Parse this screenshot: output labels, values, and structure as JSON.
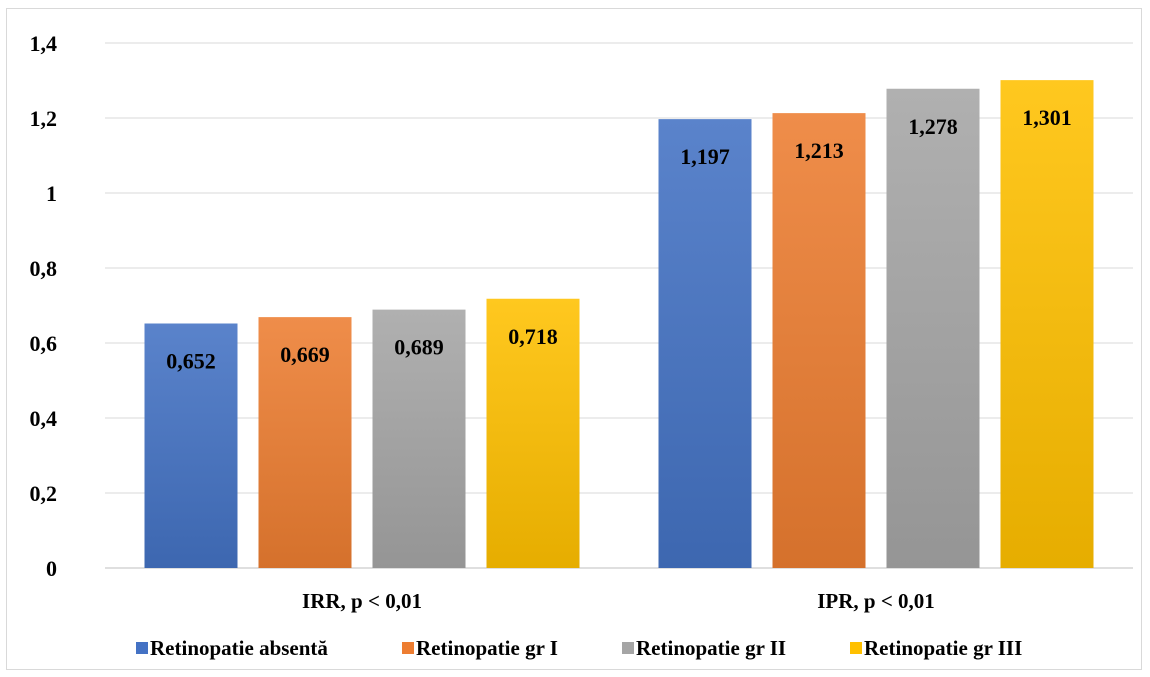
{
  "chart_data": {
    "type": "bar",
    "categories": [
      "IRR, p < 0,01",
      "IPR, p < 0,01"
    ],
    "series": [
      {
        "name": "Retinopatie absentă",
        "values": [
          0.652,
          1.197
        ],
        "labels": [
          "0,652",
          "1,197"
        ],
        "color": "#4472c4"
      },
      {
        "name": "Retinopatie gr I",
        "values": [
          0.669,
          1.213
        ],
        "labels": [
          "0,669",
          "1,213"
        ],
        "color": "#ed7d31"
      },
      {
        "name": "Retinopatie gr II",
        "values": [
          0.689,
          1.278
        ],
        "labels": [
          "0,689",
          "1,278"
        ],
        "color": "#a5a5a5"
      },
      {
        "name": "Retinopatie gr III",
        "values": [
          0.718,
          1.301
        ],
        "labels": [
          "0,718",
          "1,301"
        ],
        "color": "#ffc000"
      }
    ],
    "ylim": [
      0,
      1.4
    ],
    "yticks": [
      0,
      0.2,
      0.4,
      0.6,
      0.8,
      1,
      1.2,
      1.4
    ],
    "ytick_labels": [
      "0",
      "0,2",
      "0,4",
      "0,6",
      "0,8",
      "1",
      "1,2",
      "1,4"
    ],
    "title": "",
    "xlabel": "",
    "ylabel": "",
    "grid": true,
    "legend_position": "bottom"
  }
}
